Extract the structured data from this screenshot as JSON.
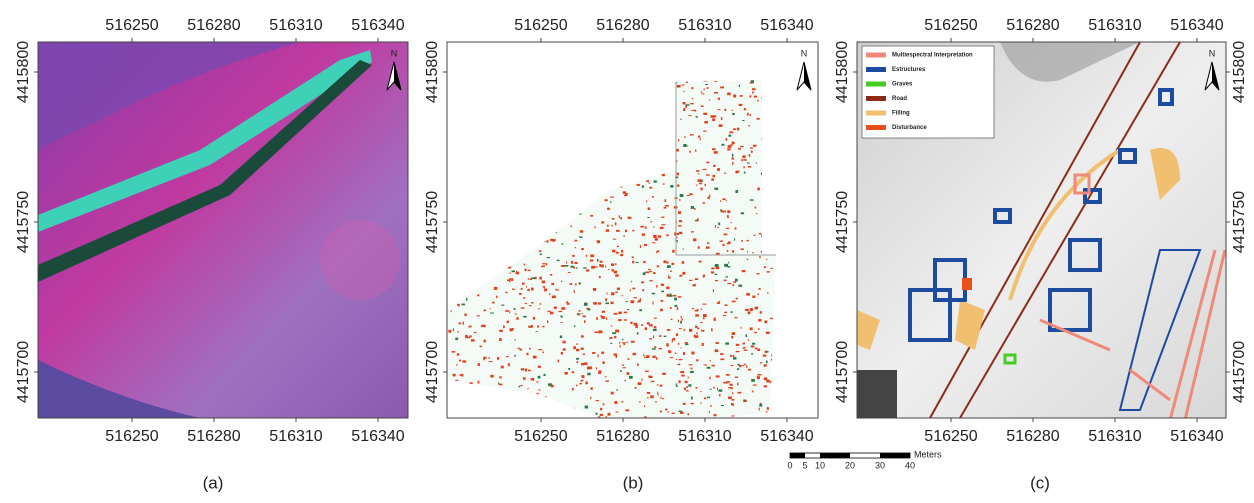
{
  "panels": [
    {
      "label": "(a)",
      "xticks": [
        516250,
        516280,
        516310,
        516340
      ],
      "yticks": [
        4415800,
        4415750,
        4415700
      ]
    },
    {
      "label": "(b)",
      "xticks": [
        516250,
        516280,
        516310,
        516340
      ],
      "yticks": [
        4415800,
        4415750,
        4415700
      ]
    },
    {
      "label": "(c)",
      "xticks": [
        516250,
        516280,
        516310,
        516340
      ],
      "yticks": [
        4415800,
        4415750,
        4415700
      ]
    }
  ],
  "north": "N",
  "legend": [
    {
      "name": "Multiespectral Interpretation",
      "color": "#f08a78"
    },
    {
      "name": "Estructures",
      "color": "#1c4ca0"
    },
    {
      "name": "Graves",
      "color": "#46cc22"
    },
    {
      "name": "Road",
      "color": "#8c2c18"
    },
    {
      "name": "Filling",
      "color": "#f0c070"
    },
    {
      "name": "Disturbance",
      "color": "#e8501a"
    }
  ],
  "scale_bar": {
    "unit": "Meters",
    "labels": [
      0,
      5,
      10,
      20,
      30,
      40
    ]
  }
}
